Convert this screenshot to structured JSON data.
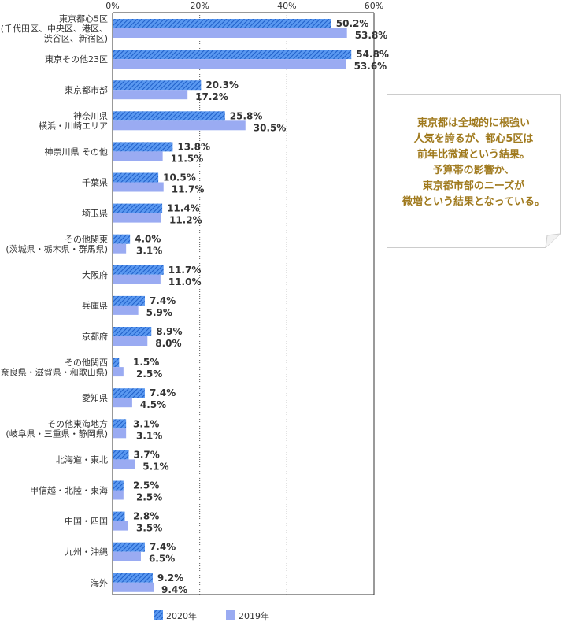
{
  "chart_data": {
    "type": "bar",
    "orientation": "horizontal",
    "xlim": [
      0,
      60
    ],
    "ticks": [
      "0%",
      "20%",
      "40%",
      "60%"
    ],
    "tick_values": [
      0,
      20,
      40,
      60
    ],
    "grid": "dotted vertical",
    "legend_position": "bottom",
    "categories": [
      [
        "東京都心5区",
        "(千代田区、中央区、港区、",
        "渋谷区、新宿区)"
      ],
      [
        "東京その他23区"
      ],
      [
        "東京都市部"
      ],
      [
        "神奈川県",
        "横浜・川崎エリア"
      ],
      [
        "神奈川県 その他"
      ],
      [
        "千葉県"
      ],
      [
        "埼玉県"
      ],
      [
        "その他関東",
        "(茨城県・栃木県・群馬県)"
      ],
      [
        "大阪府"
      ],
      [
        "兵庫県"
      ],
      [
        "京都府"
      ],
      [
        "その他関西",
        "(奈良県・滋賀県・和歌山県)"
      ],
      [
        "愛知県"
      ],
      [
        "その他東海地方",
        "(岐阜県・三重県・静岡県)"
      ],
      [
        "北海道・東北"
      ],
      [
        "甲信越・北陸・東海"
      ],
      [
        "中国・四国"
      ],
      [
        "九州・沖縄"
      ],
      [
        "海外"
      ]
    ],
    "series": [
      {
        "name": "2020年",
        "color": "#3a7fe0",
        "pattern": "hatched",
        "values": [
          50.2,
          54.8,
          20.3,
          25.8,
          13.8,
          10.5,
          11.4,
          4.0,
          11.7,
          7.4,
          8.9,
          1.5,
          7.4,
          3.1,
          3.7,
          2.5,
          2.8,
          7.4,
          9.2
        ],
        "labels": [
          "50.2%",
          "54.8%",
          "20.3%",
          "25.8%",
          "13.8%",
          "10.5%",
          "11.4%",
          "4.0%",
          "11.7%",
          "7.4%",
          "8.9%",
          "1.5%",
          "7.4%",
          "3.1%",
          "3.7%",
          "2.5%",
          "2.8%",
          "7.4%",
          "9.2%"
        ]
      },
      {
        "name": "2019年",
        "color": "#9aabf2",
        "pattern": "solid",
        "values": [
          53.8,
          53.6,
          17.2,
          30.5,
          11.5,
          11.7,
          11.2,
          3.1,
          11.0,
          5.9,
          8.0,
          2.5,
          4.5,
          3.1,
          5.1,
          2.5,
          3.5,
          6.5,
          9.4
        ],
        "labels": [
          "53.8%",
          "53.6%",
          "17.2%",
          "30.5%",
          "11.5%",
          "11.7%",
          "11.2%",
          "3.1%",
          "11.0%",
          "5.9%",
          "8.0%",
          "2.5%",
          "4.5%",
          "3.1%",
          "5.1%",
          "2.5%",
          "3.5%",
          "6.5%",
          "9.4%"
        ]
      }
    ]
  },
  "note": {
    "lines": [
      "東京都は全域的に根強い",
      "人気を誇るが、都心5区は",
      "前年比微減という結果。",
      "予算帯の影響か、",
      "東京都市部のニーズが",
      "微増という結果となっている。"
    ],
    "text_color": "#a07a1e",
    "border_color": "#cccccc"
  }
}
